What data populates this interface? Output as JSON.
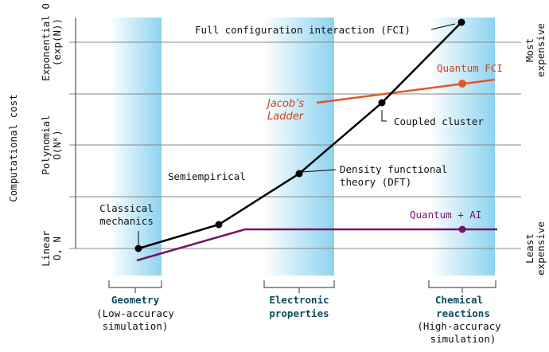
{
  "y_axis": {
    "title": "Computational cost",
    "levels": [
      {
        "line1": "Linear",
        "line2": "O, N"
      },
      {
        "line1": "Polynomial",
        "line2": "O(Nᴷ)"
      },
      {
        "line1": "Exponential O",
        "line2": "(exp(N))"
      }
    ],
    "right_top": {
      "line1": "Most",
      "line2": "expensive"
    },
    "right_bottom": {
      "line1": "Least",
      "line2": "expensive"
    }
  },
  "categories": [
    {
      "title": "Geometry",
      "sub1": "(Low-accuracy",
      "sub2": "simulation)"
    },
    {
      "title1": "Electronic",
      "title2": "properties"
    },
    {
      "title1": "Chemical",
      "title2": "reactions",
      "sub1": "(High-accuracy",
      "sub2": "simulation)"
    }
  ],
  "classical_methods": {
    "color": "#000000",
    "points": [
      {
        "label1": "Classical",
        "label2": "mechanics"
      },
      {
        "label1": "Semiempirical"
      },
      {
        "label1": "Density functional",
        "label2": "theory (DFT)"
      },
      {
        "label1": "Coupled cluster"
      },
      {
        "label1": "Full configuration interaction (FCI)"
      }
    ]
  },
  "jacobs_ladder": {
    "line1": "Jacob’s",
    "line2": "Ladder",
    "color": "#c9431c"
  },
  "quantum_fci": {
    "label": "Quantum FCI",
    "color": "#e2572a"
  },
  "quantum_ai": {
    "label": "Quantum + AI",
    "color": "#7a0f6b"
  },
  "colors": {
    "band": "#8dd3f0",
    "grid": "#888888",
    "category_text": "#0f4a5e"
  }
}
